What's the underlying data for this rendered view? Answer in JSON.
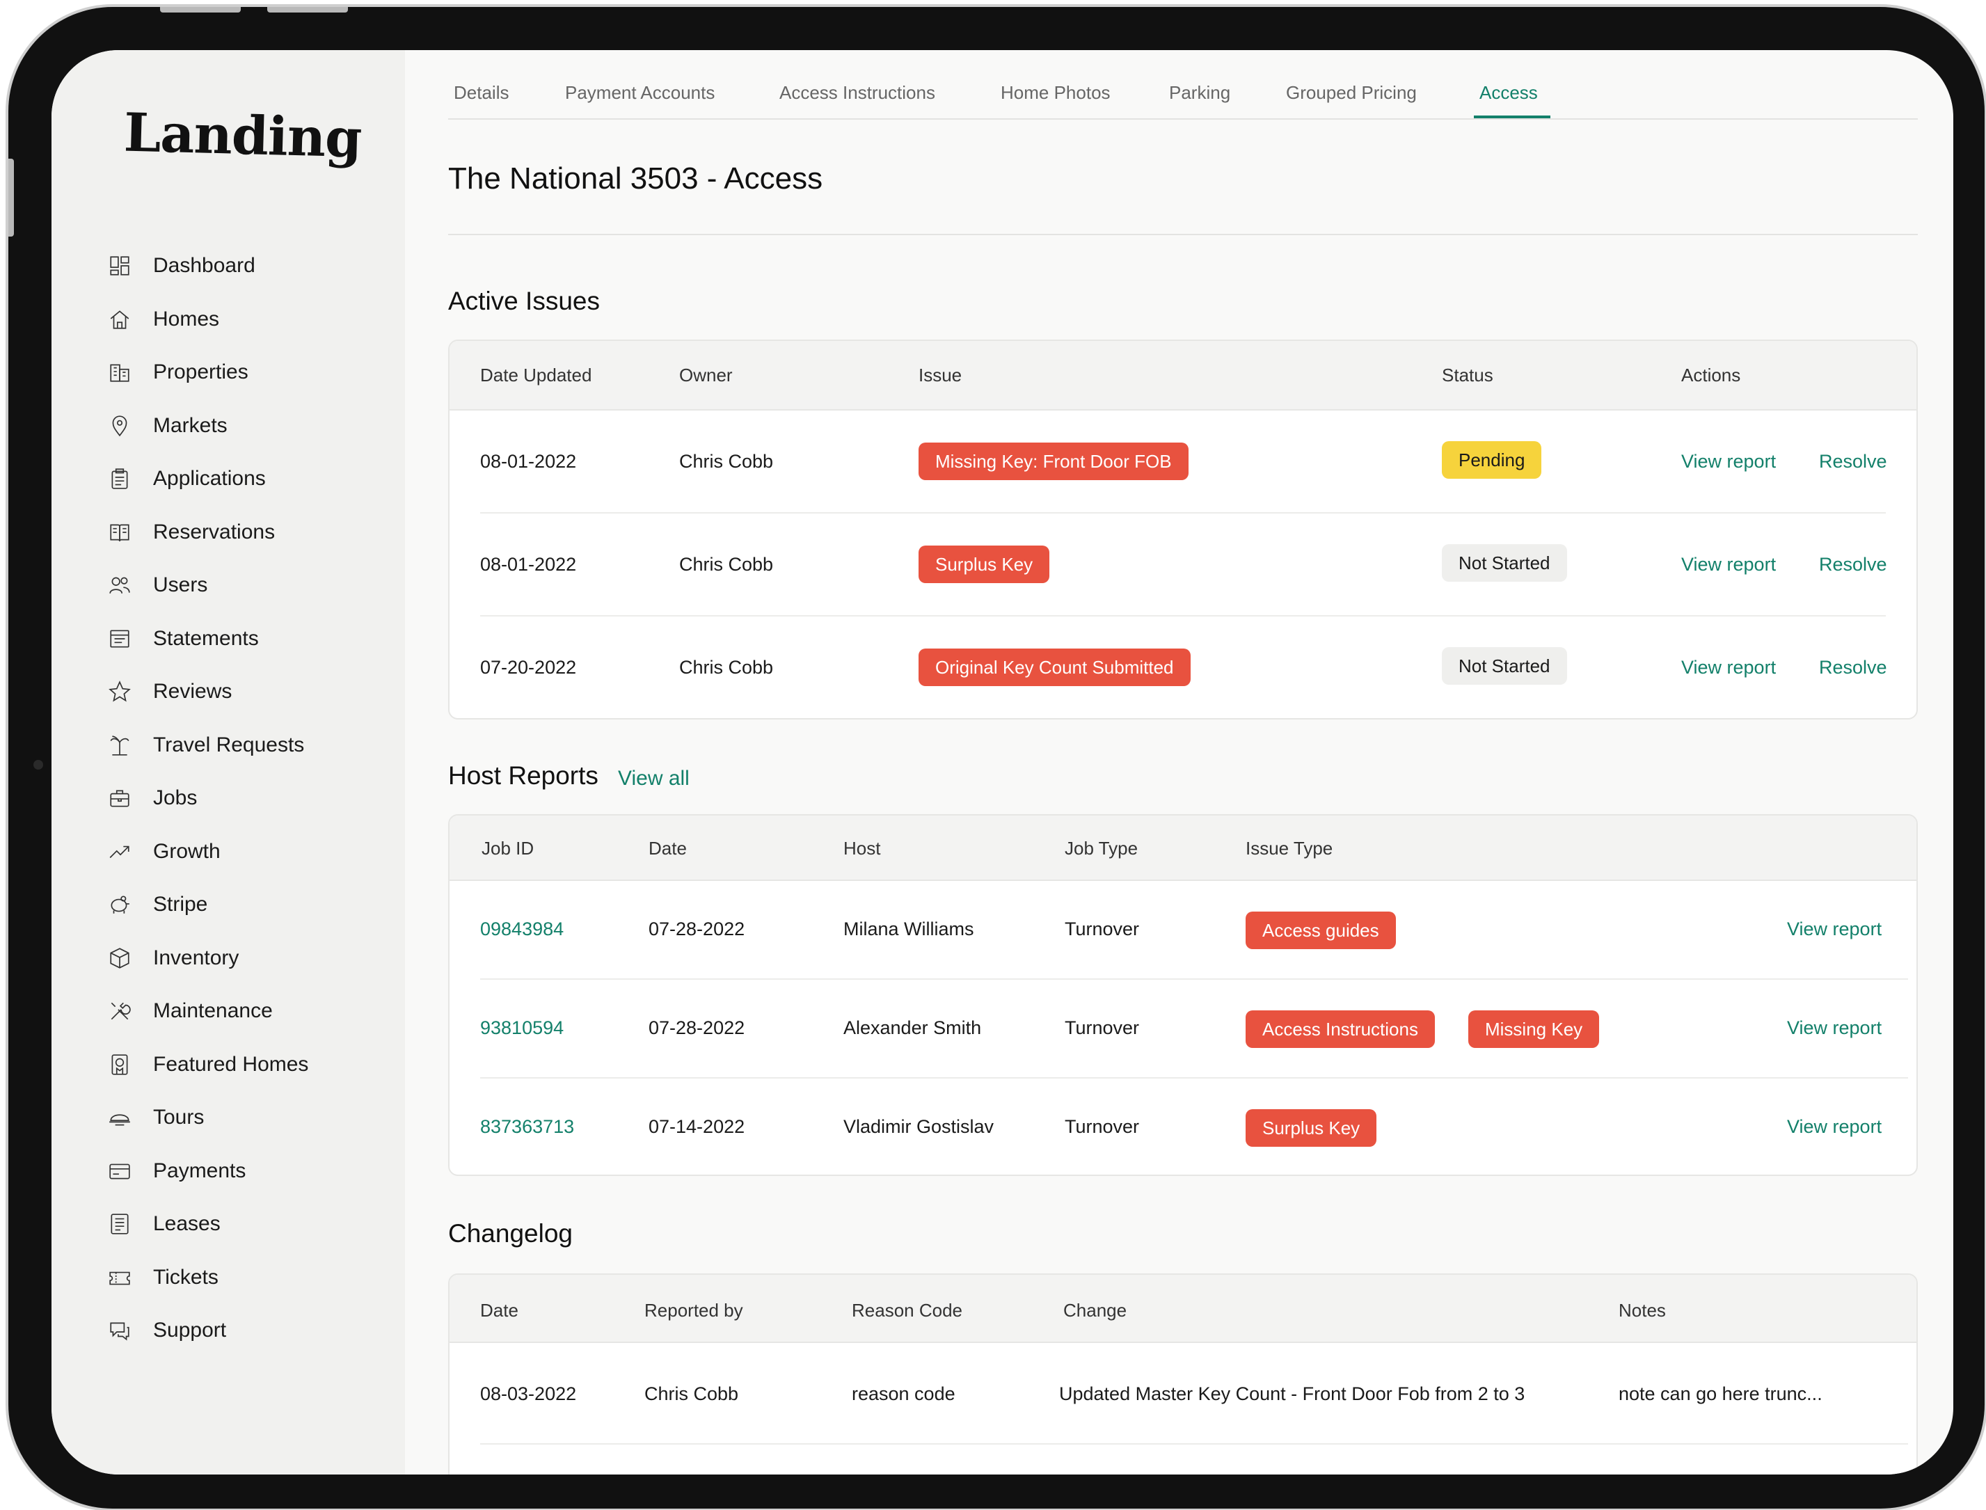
{
  "app": {
    "logo": "Landing"
  },
  "sidebar": {
    "items": [
      {
        "label": "Dashboard",
        "icon": "dashboard-icon"
      },
      {
        "label": "Homes",
        "icon": "home-icon"
      },
      {
        "label": "Properties",
        "icon": "building-icon"
      },
      {
        "label": "Markets",
        "icon": "map-pin-icon"
      },
      {
        "label": "Applications",
        "icon": "clipboard-icon"
      },
      {
        "label": "Reservations",
        "icon": "book-icon"
      },
      {
        "label": "Users",
        "icon": "users-icon"
      },
      {
        "label": "Statements",
        "icon": "statement-icon"
      },
      {
        "label": "Reviews",
        "icon": "star-icon"
      },
      {
        "label": "Travel Requests",
        "icon": "palm-tree-icon"
      },
      {
        "label": "Jobs",
        "icon": "briefcase-icon"
      },
      {
        "label": "Growth",
        "icon": "trend-icon"
      },
      {
        "label": "Stripe",
        "icon": "piggy-bank-icon"
      },
      {
        "label": "Inventory",
        "icon": "box-icon"
      },
      {
        "label": "Maintenance",
        "icon": "tools-icon"
      },
      {
        "label": "Featured Homes",
        "icon": "badge-icon"
      },
      {
        "label": "Tours",
        "icon": "hat-icon"
      },
      {
        "label": "Payments",
        "icon": "card-icon"
      },
      {
        "label": "Leases",
        "icon": "document-icon"
      },
      {
        "label": "Tickets",
        "icon": "ticket-icon"
      },
      {
        "label": "Support",
        "icon": "chat-icon"
      }
    ]
  },
  "tabs": [
    {
      "label": "Details",
      "active": false
    },
    {
      "label": "Payment Accounts",
      "active": false
    },
    {
      "label": "Access Instructions",
      "active": false
    },
    {
      "label": "Home Photos",
      "active": false
    },
    {
      "label": "Parking",
      "active": false
    },
    {
      "label": "Grouped Pricing",
      "active": false
    },
    {
      "label": "Access",
      "active": true
    }
  ],
  "page": {
    "title": "The National 3503 - Access"
  },
  "active_issues": {
    "title": "Active Issues",
    "headers": [
      "Date Updated",
      "Owner",
      "Issue",
      "Status",
      "Actions"
    ],
    "rows": [
      {
        "date": "08-01-2022",
        "owner": "Chris Cobb",
        "issue": "Missing Key: Front Door FOB",
        "status": "Pending",
        "status_style": "yellow",
        "view": "View report",
        "resolve": "Resolve"
      },
      {
        "date": "08-01-2022",
        "owner": "Chris Cobb",
        "issue": "Surplus Key",
        "status": "Not Started",
        "status_style": "gray",
        "view": "View report",
        "resolve": "Resolve"
      },
      {
        "date": "07-20-2022",
        "owner": "Chris Cobb",
        "issue": "Original Key Count Submitted",
        "status": "Not Started",
        "status_style": "gray",
        "view": "View report",
        "resolve": "Resolve"
      }
    ]
  },
  "host_reports": {
    "title": "Host Reports",
    "view_all": "View all",
    "headers": [
      "Job ID",
      "Date",
      "Host",
      "Job Type",
      "Issue Type"
    ],
    "rows": [
      {
        "job_id": "09843984",
        "date": "07-28-2022",
        "host": "Milana Williams",
        "job_type": "Turnover",
        "issues": [
          "Access guides"
        ],
        "view": "View report"
      },
      {
        "job_id": "93810594",
        "date": "07-28-2022",
        "host": "Alexander Smith",
        "job_type": "Turnover",
        "issues": [
          "Access Instructions",
          "Missing Key"
        ],
        "view": "View report"
      },
      {
        "job_id": "837363713",
        "date": "07-14-2022",
        "host": "Vladimir Gostislav",
        "job_type": "Turnover",
        "issues": [
          "Surplus Key"
        ],
        "view": "View report"
      }
    ]
  },
  "changelog": {
    "title": "Changelog",
    "headers": [
      "Date",
      "Reported by",
      "Reason Code",
      "Change",
      "Notes"
    ],
    "rows": [
      {
        "date": "08-03-2022",
        "reported_by": "Chris Cobb",
        "reason_code": "reason code",
        "change": "Updated Master Key Count - Front Door Fob from 2 to 3",
        "notes": "note can go here trunc..."
      }
    ]
  },
  "colors": {
    "accent": "#13806a",
    "issue_red": "#e8523f",
    "pending_yellow": "#f6d33c"
  }
}
